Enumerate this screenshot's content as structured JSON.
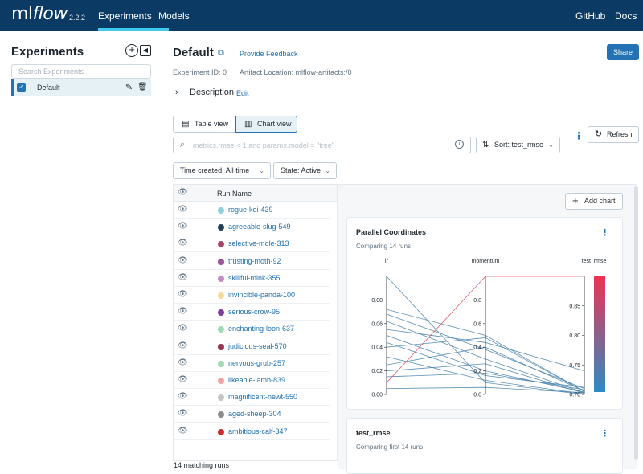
{
  "topbar": {
    "logo_ml": "ml",
    "logo_flow": "flow",
    "version": "2.2.2",
    "nav": [
      {
        "label": "Experiments"
      },
      {
        "label": "Models"
      }
    ],
    "links": [
      {
        "label": "GitHub"
      },
      {
        "label": "Docs"
      }
    ]
  },
  "sidebar": {
    "title": "Experiments",
    "add_icon": "plus-circle-icon",
    "collapse_icon": "collapse-left-icon",
    "search_placeholder": "Search Experiments",
    "items": [
      {
        "label": "Default",
        "checked": true
      }
    ]
  },
  "experiment": {
    "title": "Default",
    "feedback": "Provide Feedback",
    "share": "Share",
    "id_text": "Experiment ID: 0",
    "artifact_text": "Artifact Location: mlflow-artifacts:/0",
    "description": "Description",
    "edit": "Edit"
  },
  "toolbar": {
    "table_view": "Table view",
    "chart_view": "Chart view",
    "search_placeholder": "metrics.rmse < 1 and params.model = \"tree\"",
    "sort": "Sort: test_rmse",
    "refresh": "Refresh",
    "time_created": "Time created: All time",
    "state": "State: Active"
  },
  "runs_table": {
    "header": "Run Name",
    "rows": [
      {
        "name": "rogue-koi-439",
        "color": "#8ecfe0"
      },
      {
        "name": "agreeable-slug-549",
        "color": "#1b3f5c"
      },
      {
        "name": "selective-mole-313",
        "color": "#a94663"
      },
      {
        "name": "trusting-moth-92",
        "color": "#a0549b"
      },
      {
        "name": "skillful-mink-355",
        "color": "#c48cc4"
      },
      {
        "name": "invincible-panda-100",
        "color": "#f4dc95"
      },
      {
        "name": "serious-crow-95",
        "color": "#7e3e9b"
      },
      {
        "name": "enchanting-loon-637",
        "color": "#9ed9b5"
      },
      {
        "name": "judicious-seal-570",
        "color": "#9c3551"
      },
      {
        "name": "nervous-grub-257",
        "color": "#9fdcb7"
      },
      {
        "name": "likeable-lamb-839",
        "color": "#f3a3a8"
      },
      {
        "name": "magnificent-newt-550",
        "color": "#c4c4c4"
      },
      {
        "name": "aged-sheep-304",
        "color": "#8a8a8a"
      },
      {
        "name": "ambitious-calf-347",
        "color": "#d42a2a"
      }
    ],
    "matching": "14 matching runs"
  },
  "charts": {
    "add_chart": "Add chart",
    "parallel": {
      "title": "Parallel Coordinates",
      "subtitle": "Comparing 14 runs"
    },
    "rmse": {
      "title": "test_rmse",
      "subtitle": "Comparing first 14 runs"
    }
  },
  "chart_data": {
    "type": "parallel-coordinates",
    "title": "Parallel Coordinates",
    "axes": [
      {
        "name": "lr",
        "ticks": [
          "0.00",
          "0.02",
          "0.04",
          "0.06",
          "0.08"
        ],
        "range": [
          0,
          0.1
        ]
      },
      {
        "name": "momentum",
        "ticks": [
          "0.0",
          "0.2",
          "0.4",
          "0.6",
          "0.8"
        ],
        "range": [
          0,
          1
        ]
      },
      {
        "name": "test_rmse",
        "ticks": [
          "0.70",
          "0.75",
          "0.80",
          "0.85"
        ],
        "range": [
          0.7,
          0.9
        ]
      }
    ],
    "lines": [
      {
        "values": [
          0.1,
          0.1,
          0.7
        ],
        "color": "#4a84ad"
      },
      {
        "values": [
          0.072,
          0.5,
          0.705
        ],
        "color": "#4a84ad"
      },
      {
        "values": [
          0.068,
          0.38,
          0.71
        ],
        "color": "#4a84ad"
      },
      {
        "values": [
          0.062,
          0.3,
          0.703
        ],
        "color": "#4a84ad"
      },
      {
        "values": [
          0.055,
          0.44,
          0.74
        ],
        "color": "#4a84ad"
      },
      {
        "values": [
          0.05,
          0.2,
          0.704
        ],
        "color": "#4a84ad"
      },
      {
        "values": [
          0.044,
          0.16,
          0.712
        ],
        "color": "#4a84ad"
      },
      {
        "values": [
          0.04,
          0.48,
          0.705
        ],
        "color": "#4a84ad"
      },
      {
        "values": [
          0.032,
          0.12,
          0.701
        ],
        "color": "#4a84ad"
      },
      {
        "values": [
          0.025,
          0.4,
          0.706
        ],
        "color": "#4a84ad"
      },
      {
        "values": [
          0.02,
          0.26,
          0.702
        ],
        "color": "#4a84ad"
      },
      {
        "values": [
          0.015,
          0.18,
          0.708
        ],
        "color": "#4a84ad"
      },
      {
        "values": [
          0.005,
          0.06,
          0.703
        ],
        "color": "#4a84ad"
      },
      {
        "values": [
          0.01,
          1.0,
          0.9
        ],
        "color": "#e04a5a"
      }
    ],
    "colorbar": {
      "top": "#ee3352",
      "bottom": "#2e8bc2"
    }
  }
}
